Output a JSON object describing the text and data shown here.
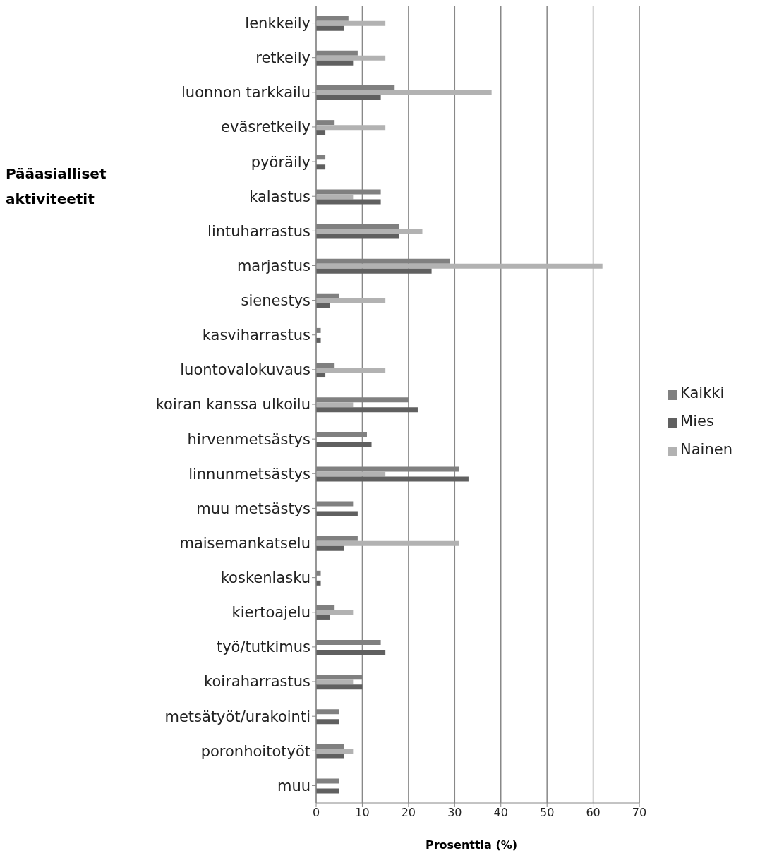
{
  "chart_data": {
    "type": "bar",
    "orientation": "horizontal",
    "ylabel": "Pääasialliset aktiviteetit",
    "xlabel": "Prosenttia (%)",
    "categories": [
      "lenkkeily",
      "retkeily",
      "luonnon tarkkailu",
      "eväsretkeily",
      "pyöräily",
      "kalastus",
      "lintuharrastus",
      "marjastus",
      "sienestys",
      "kasviharrastus",
      "luontovalokuvaus",
      "koiran kanssa ulkoilu",
      "hirvenmetsästys",
      "linnunmetsästys",
      "muu metsästys",
      "maisemankatselu",
      "koskenlasku",
      "kiertoajelu",
      "työ/tutkimus",
      "koiraharrastus",
      "metsätyöt/urakointi",
      "poronhoitotyöt",
      "muu"
    ],
    "series": [
      {
        "name": "Kaikki",
        "color": "#808080",
        "values": [
          7,
          9,
          17,
          4,
          2,
          14,
          18,
          29,
          5,
          1,
          4,
          20,
          11,
          31,
          8,
          9,
          1,
          4,
          14,
          10,
          5,
          6,
          5
        ]
      },
      {
        "name": "Nainen",
        "color": "#b2b2b2",
        "values": [
          15,
          15,
          38,
          15,
          0,
          8,
          23,
          62,
          15,
          0,
          15,
          8,
          0,
          15,
          0,
          31,
          0,
          8,
          0,
          8,
          0,
          8,
          0
        ]
      },
      {
        "name": "Mies",
        "color": "#606060",
        "values": [
          6,
          8,
          14,
          2,
          2,
          14,
          18,
          25,
          3,
          1,
          2,
          22,
          12,
          33,
          9,
          6,
          1,
          3,
          15,
          10,
          5,
          6,
          5
        ]
      }
    ],
    "xlim": [
      0,
      70
    ],
    "xticks": [
      0,
      10,
      20,
      30,
      40,
      50,
      60,
      70
    ],
    "grid": "x",
    "legend": "right"
  }
}
